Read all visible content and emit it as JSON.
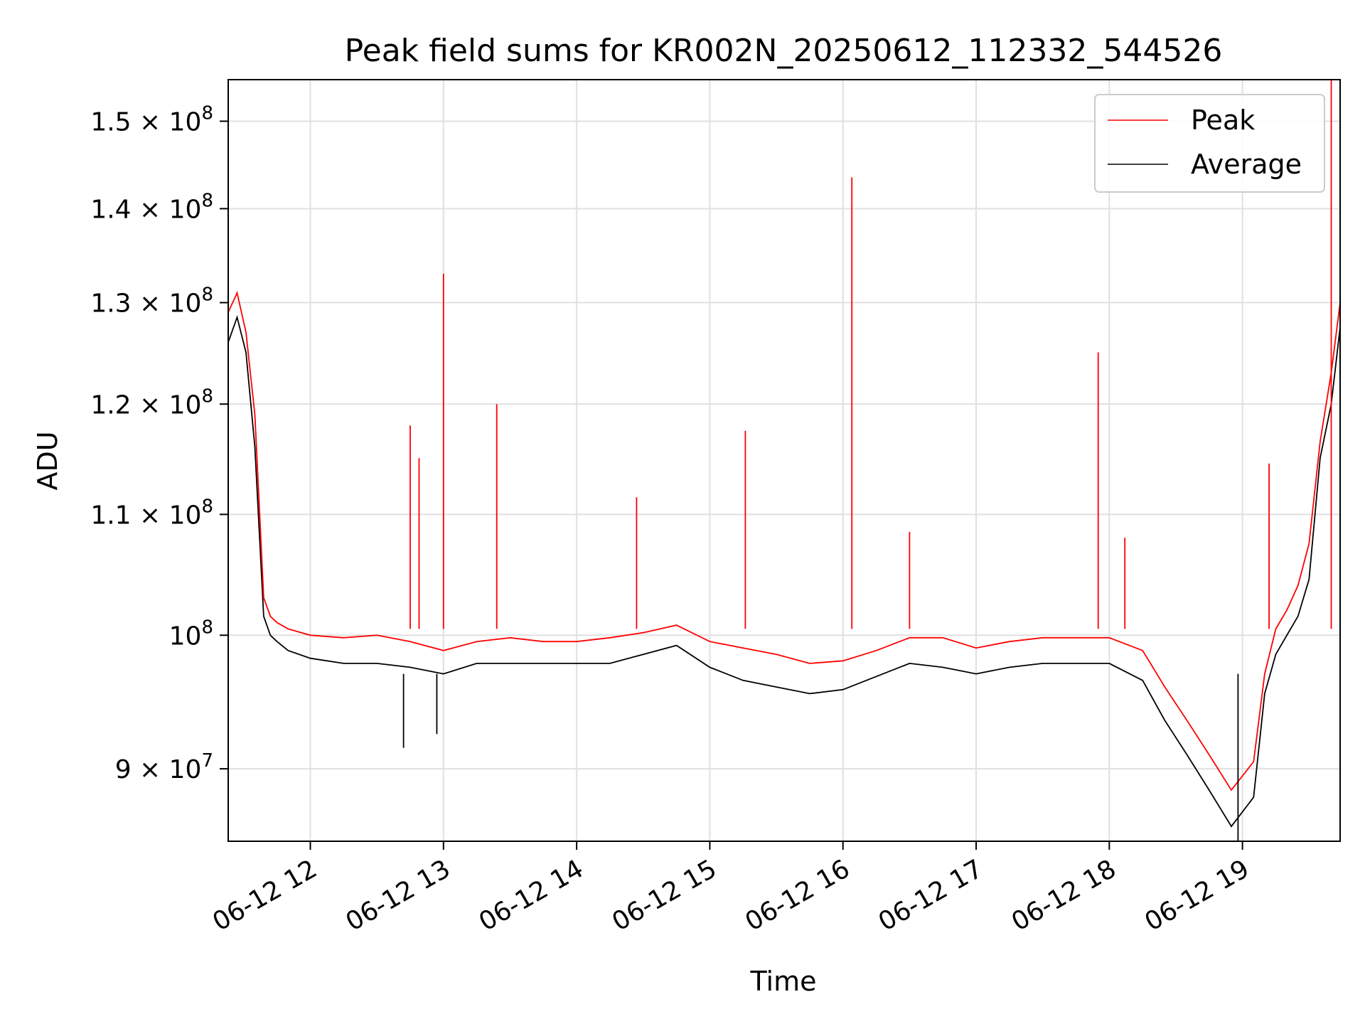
{
  "chart_data": {
    "type": "line",
    "title": "Peak field sums for KR002N_20250612_112332_544526",
    "xlabel": "Time",
    "ylabel": "ADU",
    "y_scale": "log",
    "grid": true,
    "legend_position": "top-right",
    "xlim": [
      "2025-06-12 11:23",
      "2025-06-12 19:44"
    ],
    "ylim": [
      85000000,
      155000000
    ],
    "x_ticks": [
      {
        "value": "2025-06-12 12:00",
        "label": "06-12 12"
      },
      {
        "value": "2025-06-12 13:00",
        "label": "06-12 13"
      },
      {
        "value": "2025-06-12 14:00",
        "label": "06-12 14"
      },
      {
        "value": "2025-06-12 15:00",
        "label": "06-12 15"
      },
      {
        "value": "2025-06-12 16:00",
        "label": "06-12 16"
      },
      {
        "value": "2025-06-12 17:00",
        "label": "06-12 17"
      },
      {
        "value": "2025-06-12 18:00",
        "label": "06-12 18"
      },
      {
        "value": "2025-06-12 19:00",
        "label": "06-12 19"
      }
    ],
    "y_ticks": [
      {
        "value": 90000000,
        "mant": "9",
        "exp": "7"
      },
      {
        "value": 100000000,
        "mant": "",
        "exp": "8"
      },
      {
        "value": 110000000,
        "mant": "1.1",
        "exp": "8"
      },
      {
        "value": 120000000,
        "mant": "1.2",
        "exp": "8"
      },
      {
        "value": 130000000,
        "mant": "1.3",
        "exp": "8"
      },
      {
        "value": 140000000,
        "mant": "1.4",
        "exp": "8"
      },
      {
        "value": 150000000,
        "mant": "1.5",
        "exp": "8"
      }
    ],
    "x": [
      "2025-06-12 11:23",
      "2025-06-12 11:27",
      "2025-06-12 11:31",
      "2025-06-12 11:35",
      "2025-06-12 11:39",
      "2025-06-12 11:42",
      "2025-06-12 11:45",
      "2025-06-12 11:50",
      "2025-06-12 12:00",
      "2025-06-12 12:15",
      "2025-06-12 12:30",
      "2025-06-12 12:45",
      "2025-06-12 13:00",
      "2025-06-12 13:15",
      "2025-06-12 13:30",
      "2025-06-12 13:45",
      "2025-06-12 14:00",
      "2025-06-12 14:15",
      "2025-06-12 14:30",
      "2025-06-12 14:45",
      "2025-06-12 15:00",
      "2025-06-12 15:15",
      "2025-06-12 15:30",
      "2025-06-12 15:45",
      "2025-06-12 16:00",
      "2025-06-12 16:15",
      "2025-06-12 16:30",
      "2025-06-12 16:45",
      "2025-06-12 17:00",
      "2025-06-12 17:15",
      "2025-06-12 17:30",
      "2025-06-12 17:45",
      "2025-06-12 18:00",
      "2025-06-12 18:15",
      "2025-06-12 18:25",
      "2025-06-12 18:35",
      "2025-06-12 18:45",
      "2025-06-12 18:55",
      "2025-06-12 19:05",
      "2025-06-12 19:10",
      "2025-06-12 19:15",
      "2025-06-12 19:20",
      "2025-06-12 19:25",
      "2025-06-12 19:30",
      "2025-06-12 19:35",
      "2025-06-12 19:40",
      "2025-06-12 19:44"
    ],
    "series": [
      {
        "name": "Peak",
        "color": "#ff0000",
        "values": [
          129000000,
          131000000,
          127000000,
          119000000,
          103000000,
          101500000,
          101000000,
          100500000,
          100000000,
          99800000,
          100000000,
          99500000,
          98800000,
          99500000,
          99800000,
          99500000,
          99500000,
          99800000,
          100200000,
          100800000,
          99500000,
          99000000,
          98500000,
          97800000,
          98000000,
          98800000,
          99800000,
          99800000,
          99000000,
          99500000,
          99800000,
          99800000,
          99800000,
          98800000,
          96000000,
          93500000,
          91000000,
          88500000,
          90500000,
          97000000,
          100500000,
          102000000,
          104000000,
          107500000,
          116500000,
          123000000,
          130000000
        ],
        "spikes": [
          {
            "x": "2025-06-12 12:45",
            "y": 118000000
          },
          {
            "x": "2025-06-12 12:49",
            "y": 115000000
          },
          {
            "x": "2025-06-12 13:00",
            "y": 133000000
          },
          {
            "x": "2025-06-12 13:24",
            "y": 120000000
          },
          {
            "x": "2025-06-12 14:27",
            "y": 111500000
          },
          {
            "x": "2025-06-12 15:16",
            "y": 117500000
          },
          {
            "x": "2025-06-12 16:04",
            "y": 143500000
          },
          {
            "x": "2025-06-12 16:30",
            "y": 108500000
          },
          {
            "x": "2025-06-12 17:55",
            "y": 125000000
          },
          {
            "x": "2025-06-12 18:07",
            "y": 108000000
          },
          {
            "x": "2025-06-12 19:12",
            "y": 114500000
          },
          {
            "x": "2025-06-12 19:40",
            "y": 155000000
          }
        ]
      },
      {
        "name": "Average",
        "color": "#000000",
        "values": [
          126000000,
          128500000,
          125000000,
          116000000,
          101500000,
          100000000,
          99500000,
          98800000,
          98200000,
          97800000,
          97800000,
          97500000,
          97000000,
          97800000,
          97800000,
          97800000,
          97800000,
          97800000,
          98500000,
          99200000,
          97500000,
          96500000,
          96000000,
          95500000,
          95800000,
          96800000,
          97800000,
          97500000,
          97000000,
          97500000,
          97800000,
          97800000,
          97800000,
          96500000,
          93500000,
          91000000,
          88500000,
          86000000,
          88000000,
          95500000,
          98500000,
          100000000,
          101500000,
          104500000,
          115000000,
          120000000,
          127500000
        ],
        "dips": [
          {
            "x": "2025-06-12 12:42",
            "y": 91500000
          },
          {
            "x": "2025-06-12 12:57",
            "y": 92500000
          },
          {
            "x": "2025-06-12 18:58",
            "y": 85000000
          }
        ]
      }
    ]
  }
}
